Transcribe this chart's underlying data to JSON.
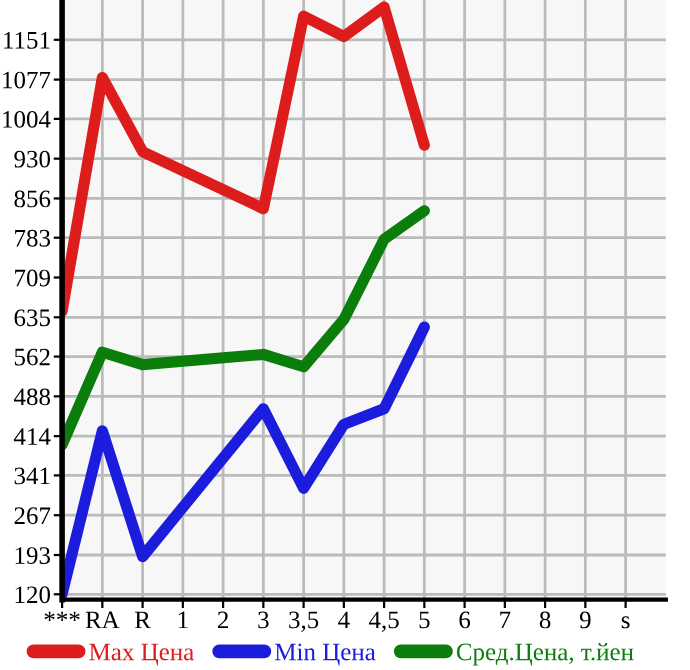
{
  "chart_data": {
    "type": "line",
    "categories": [
      "***",
      "RA",
      "R",
      "1",
      "2",
      "3",
      "3,5",
      "4",
      "4,5",
      "5",
      "6",
      "7",
      "8",
      "9",
      "s"
    ],
    "series": [
      {
        "name": "Max Цена",
        "color": "#dd1c1c",
        "values": [
          646,
          1081,
          943,
          null,
          null,
          837,
          1195,
          1157,
          1212,
          955,
          null,
          null,
          null,
          null,
          null
        ]
      },
      {
        "name": "Min Цена",
        "color": "#1c1cdd",
        "values": [
          120,
          424,
          190,
          null,
          null,
          465,
          317,
          436,
          465,
          617,
          null,
          null,
          null,
          null,
          null
        ]
      },
      {
        "name": "Сред.Цена, т.йен",
        "color": "#0a7d0a",
        "values": [
          398,
          570,
          547,
          null,
          null,
          566,
          543,
          631,
          780,
          833,
          null,
          null,
          null,
          null,
          null
        ]
      }
    ],
    "ylim": [
      110,
      1225
    ],
    "yticks": [
      120,
      193,
      267,
      341,
      414,
      488,
      562,
      635,
      709,
      783,
      856,
      930,
      1004,
      1077,
      1151
    ],
    "grid": true,
    "legend": "bottom",
    "marker": "none",
    "line_style": "solid"
  }
}
